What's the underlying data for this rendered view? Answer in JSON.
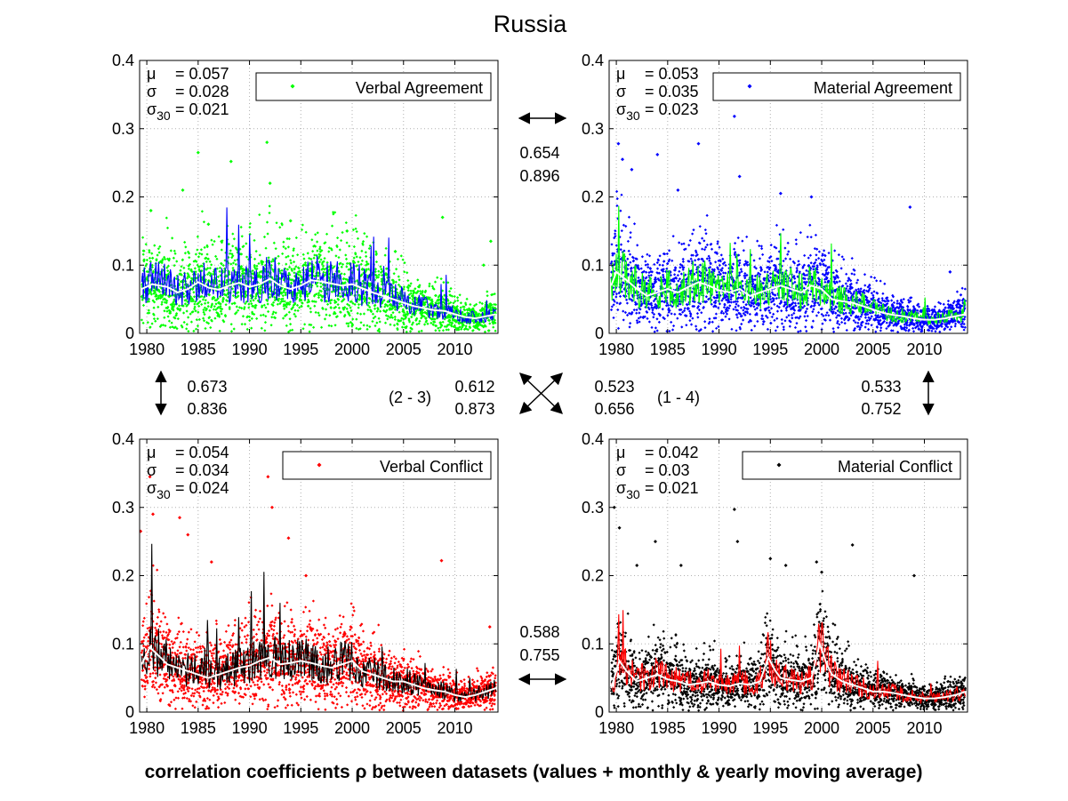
{
  "figure": {
    "title": "Russia",
    "caption": "correlation coefficients ρ between datasets (values + monthly & yearly moving average)"
  },
  "colors": {
    "verbal_agreement": "#00ff00",
    "material_agreement": "#0000ff",
    "verbal_conflict": "#ff0000",
    "material_conflict": "#000000",
    "yearly_average": "#ffffff",
    "grid": "#b0b0b0"
  },
  "correlations": {
    "top": {
      "values": [
        "0.654",
        "0.896"
      ],
      "arrow": "horizontal"
    },
    "bottom": {
      "values": [
        "0.588",
        "0.755"
      ],
      "arrow": "horizontal"
    },
    "left": {
      "values": [
        "0.673",
        "0.836"
      ],
      "arrow": "vertical"
    },
    "right": {
      "values": [
        "0.533",
        "0.752"
      ],
      "arrow": "vertical"
    },
    "diag_2_3": {
      "label": "(2 - 3)",
      "values": [
        "0.612",
        "0.873"
      ]
    },
    "diag_1_4": {
      "label": "(1 - 4)",
      "values": [
        "0.523",
        "0.656"
      ]
    }
  },
  "chart_data": [
    {
      "type": "scatter",
      "legend": "Verbal Agreement",
      "stats": {
        "mu": "= 0.057",
        "sigma": "= 0.028",
        "sigma30": "= 0.021"
      },
      "xlim": [
        1979.3,
        2014.2
      ],
      "ylim": [
        0,
        0.4
      ],
      "xticks": [
        1980,
        1985,
        1990,
        1995,
        2000,
        2005,
        2010
      ],
      "yticks": [
        0,
        0.1,
        0.2,
        0.3,
        0.4
      ],
      "yticklabels": [
        "0",
        "0.1",
        "0.2",
        "0.3",
        "0.4"
      ],
      "grid": true,
      "legend_position": "top-right",
      "point_color": "#00ff00",
      "monthly_color": "#0000ff",
      "yearly_color": "#ffffff",
      "yearly_average": {
        "x": [
          1979.5,
          1980.5,
          1982,
          1983,
          1984,
          1985,
          1986,
          1987,
          1988,
          1989,
          1990,
          1991,
          1992,
          1993,
          1994,
          1995,
          1996,
          1997,
          1998,
          1999,
          2000,
          2001,
          2002,
          2003,
          2004,
          2005,
          2006,
          2007,
          2008,
          2009,
          2010,
          2011,
          2012,
          2013,
          2014
        ],
        "y": [
          0.065,
          0.072,
          0.068,
          0.06,
          0.065,
          0.075,
          0.067,
          0.064,
          0.07,
          0.074,
          0.068,
          0.072,
          0.08,
          0.07,
          0.065,
          0.07,
          0.078,
          0.076,
          0.073,
          0.07,
          0.072,
          0.066,
          0.06,
          0.055,
          0.05,
          0.045,
          0.04,
          0.037,
          0.034,
          0.033,
          0.028,
          0.024,
          0.022,
          0.025,
          0.028
        ]
      },
      "outliers": {
        "x": [
          1985,
          1988.2,
          1991.7,
          1992,
          2008.8,
          2013.5,
          1980.4,
          1983.5,
          1986,
          1994,
          1999.5,
          2004.2,
          2012.8
        ],
        "y": [
          0.265,
          0.252,
          0.28,
          0.22,
          0.17,
          0.135,
          0.18,
          0.21,
          0.16,
          0.165,
          0.15,
          0.12,
          0.1
        ]
      }
    },
    {
      "type": "scatter",
      "legend": "Material Agreement",
      "stats": {
        "mu": "= 0.053",
        "sigma": "= 0.035",
        "sigma30": "= 0.023"
      },
      "xlim": [
        1979.3,
        2014.2
      ],
      "ylim": [
        0,
        0.4
      ],
      "xticks": [
        1980,
        1985,
        1990,
        1995,
        2000,
        2005,
        2010
      ],
      "yticks": [
        0,
        0.1,
        0.2,
        0.3,
        0.4
      ],
      "yticklabels": [
        "0",
        "0.1",
        "0.2",
        "0.3",
        "0.4"
      ],
      "grid": true,
      "legend_position": "top-right",
      "point_color": "#0000ff",
      "monthly_color": "#00ff00",
      "yearly_color": "#ffffff",
      "yearly_average": {
        "x": [
          1979.5,
          1980,
          1981,
          1982,
          1983,
          1984,
          1985,
          1986,
          1987,
          1988,
          1989,
          1990,
          1991,
          1992,
          1993,
          1994,
          1995,
          1996,
          1997,
          1998,
          1999,
          2000,
          2001,
          2002,
          2003,
          2004,
          2005,
          2006,
          2007,
          2008,
          2009,
          2010,
          2011,
          2012,
          2013,
          2014
        ],
        "y": [
          0.07,
          0.09,
          0.078,
          0.065,
          0.055,
          0.06,
          0.065,
          0.06,
          0.068,
          0.075,
          0.07,
          0.063,
          0.06,
          0.065,
          0.055,
          0.06,
          0.065,
          0.07,
          0.065,
          0.06,
          0.07,
          0.065,
          0.05,
          0.047,
          0.045,
          0.04,
          0.035,
          0.03,
          0.027,
          0.025,
          0.022,
          0.02,
          0.02,
          0.022,
          0.025,
          0.028
        ]
      },
      "outliers": {
        "x": [
          1980.2,
          1980.6,
          1984,
          1988,
          1991.5,
          1992,
          1996,
          2008.6,
          1981.5,
          1986,
          1999,
          2012.5
        ],
        "y": [
          0.278,
          0.255,
          0.262,
          0.278,
          0.318,
          0.23,
          0.205,
          0.185,
          0.24,
          0.21,
          0.2,
          0.09
        ]
      }
    },
    {
      "type": "scatter",
      "legend": "Verbal Conflict",
      "stats": {
        "mu": "= 0.054",
        "sigma": "= 0.034",
        "sigma30": "= 0.024"
      },
      "xlim": [
        1979.3,
        2014.2
      ],
      "ylim": [
        0,
        0.4
      ],
      "xticks": [
        1980,
        1985,
        1990,
        1995,
        2000,
        2005,
        2010
      ],
      "yticks": [
        0,
        0.1,
        0.2,
        0.3,
        0.4
      ],
      "yticklabels": [
        "0",
        "0.1",
        "0.2",
        "0.3",
        "0.4"
      ],
      "grid": true,
      "legend_position": "top-right",
      "point_color": "#ff0000",
      "monthly_color": "#000000",
      "yearly_color": "#ffffff",
      "yearly_average": {
        "x": [
          1979.5,
          1980.3,
          1981,
          1982,
          1983,
          1984,
          1985,
          1986,
          1987,
          1988,
          1989,
          1990,
          1991,
          1992,
          1993,
          1994,
          1995,
          1996,
          1997,
          1998,
          1999,
          2000,
          2001,
          2002,
          2003,
          2004,
          2005,
          2006,
          2007,
          2008,
          2009,
          2010,
          2011,
          2012,
          2013,
          2014
        ],
        "y": [
          0.07,
          0.095,
          0.085,
          0.07,
          0.065,
          0.06,
          0.055,
          0.05,
          0.055,
          0.06,
          0.065,
          0.068,
          0.075,
          0.08,
          0.07,
          0.072,
          0.075,
          0.072,
          0.068,
          0.065,
          0.07,
          0.075,
          0.06,
          0.055,
          0.05,
          0.045,
          0.045,
          0.04,
          0.035,
          0.032,
          0.03,
          0.025,
          0.022,
          0.025,
          0.03,
          0.035
        ]
      },
      "outliers": {
        "x": [
          1980.3,
          1980.6,
          1983.2,
          1984,
          1986.3,
          1991.8,
          1992.2,
          1993.8,
          1995.5,
          2008.7,
          1979.4,
          2013.4
        ],
        "y": [
          0.345,
          0.29,
          0.285,
          0.26,
          0.22,
          0.345,
          0.3,
          0.255,
          0.2,
          0.222,
          0.265,
          0.125
        ]
      }
    },
    {
      "type": "scatter",
      "legend": "Material Conflict",
      "stats": {
        "mu": "= 0.042",
        "sigma": "= 0.03",
        "sigma30": "= 0.021"
      },
      "xlim": [
        1979.3,
        2014.2
      ],
      "ylim": [
        0,
        0.4
      ],
      "xticks": [
        1980,
        1985,
        1990,
        1995,
        2000,
        2005,
        2010
      ],
      "yticks": [
        0,
        0.1,
        0.2,
        0.3,
        0.4
      ],
      "yticklabels": [
        "0",
        "0.1",
        "0.2",
        "0.3",
        "0.4"
      ],
      "grid": true,
      "legend_position": "top-right",
      "point_color": "#000000",
      "monthly_color": "#ff0000",
      "yearly_color": "#ffffff",
      "yearly_average": {
        "x": [
          1979.5,
          1980.3,
          1981,
          1982,
          1983,
          1984,
          1985,
          1986,
          1987,
          1988,
          1989,
          1990,
          1991,
          1992,
          1993,
          1994,
          1994.8,
          1995.5,
          1996,
          1997,
          1998,
          1999,
          1999.8,
          2000.5,
          2001,
          2002,
          2003,
          2004,
          2005,
          2006,
          2007,
          2008,
          2009,
          2010,
          2011,
          2012,
          2013,
          2014
        ],
        "y": [
          0.035,
          0.075,
          0.06,
          0.045,
          0.05,
          0.055,
          0.048,
          0.045,
          0.04,
          0.042,
          0.045,
          0.04,
          0.038,
          0.042,
          0.04,
          0.045,
          0.08,
          0.06,
          0.05,
          0.047,
          0.045,
          0.05,
          0.1,
          0.07,
          0.055,
          0.045,
          0.04,
          0.035,
          0.03,
          0.03,
          0.028,
          0.025,
          0.022,
          0.02,
          0.02,
          0.022,
          0.025,
          0.03
        ]
      },
      "outliers": {
        "x": [
          1979.8,
          1980.3,
          1982,
          1983.8,
          1986.3,
          1991.5,
          1991.8,
          1995,
          1996.5,
          1999.5,
          2000,
          2003,
          2009
        ],
        "y": [
          0.3,
          0.27,
          0.215,
          0.25,
          0.215,
          0.297,
          0.25,
          0.225,
          0.215,
          0.22,
          0.205,
          0.245,
          0.2
        ]
      }
    }
  ]
}
